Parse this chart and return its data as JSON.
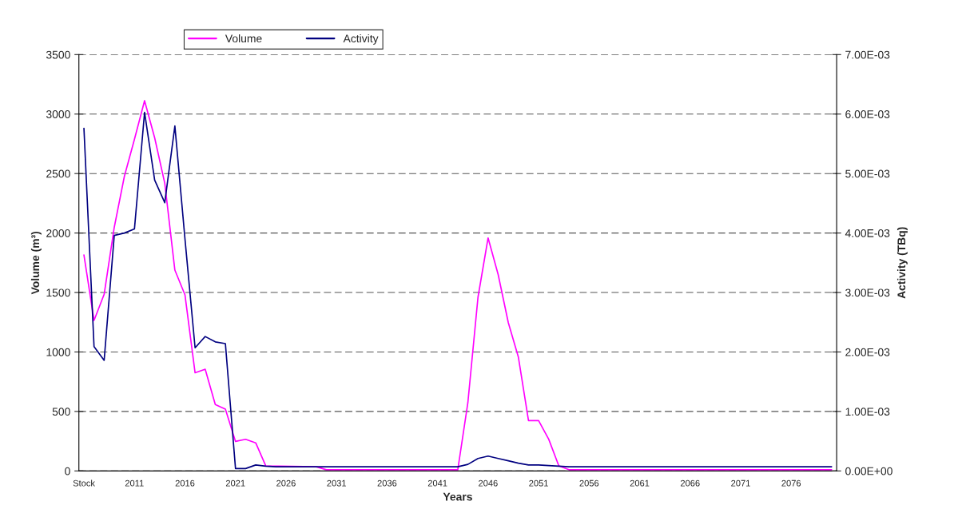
{
  "chart_data": {
    "type": "line",
    "xlabel": "Years",
    "ylabel": "Volume (m³)",
    "y2label": "Activity (TBq)",
    "categories": [
      "Stock",
      null,
      null,
      null,
      null,
      "2011",
      null,
      null,
      null,
      null,
      "2016",
      null,
      null,
      null,
      null,
      "2021",
      null,
      null,
      null,
      null,
      "2026",
      null,
      null,
      null,
      null,
      "2031",
      null,
      null,
      null,
      null,
      "2036",
      null,
      null,
      null,
      null,
      "2041",
      null,
      null,
      null,
      null,
      "2046",
      null,
      null,
      null,
      null,
      "2051",
      null,
      null,
      null,
      null,
      "2056",
      null,
      null,
      null,
      null,
      "2061",
      null,
      null,
      null,
      null,
      "2066",
      null,
      null,
      null,
      null,
      "2071",
      null,
      null,
      null,
      null,
      "2076",
      null,
      null,
      null,
      null
    ],
    "series": [
      {
        "name": "Volume",
        "color": "#ff00ff",
        "values": [
          1816,
          1265,
          1485,
          2048,
          2476,
          2788,
          3113,
          2800,
          2418,
          1688,
          1480,
          825,
          855,
          558,
          519,
          248,
          266,
          236,
          42,
          null,
          null,
          null,
          null,
          35,
          10,
          10,
          10,
          10,
          10,
          10,
          10,
          10,
          10,
          10,
          10,
          10,
          10,
          10,
          575,
          1460,
          1959,
          1650,
          1247,
          956,
          423,
          423,
          267,
          42,
          10,
          10,
          10,
          10,
          10,
          10,
          10,
          10,
          10,
          10,
          10,
          10,
          10,
          10,
          10,
          10,
          10,
          10,
          10,
          10,
          10,
          10,
          10,
          10,
          10,
          10,
          10
        ]
      },
      {
        "name": "Activity",
        "color": "#000080",
        "axis": "y2",
        "values": [
          0.00576,
          0.00209,
          0.00186,
          0.00396,
          0.004,
          0.00407,
          0.00603,
          0.00489,
          0.00451,
          0.0058,
          0.0039,
          0.00207,
          0.00226,
          0.00217,
          0.00214,
          4e-05,
          4e-05,
          0.0001,
          8e-05,
          7e-05,
          7e-05,
          7e-05,
          7e-05,
          7e-05,
          7e-05,
          7e-05,
          7e-05,
          7e-05,
          7e-05,
          7e-05,
          7e-05,
          7e-05,
          7e-05,
          7e-05,
          7e-05,
          7e-05,
          7e-05,
          7e-05,
          0.00011,
          0.00021,
          0.00025,
          0.00021,
          0.00017,
          0.00013,
          0.0001,
          0.0001,
          9e-05,
          8e-05,
          7e-05,
          7e-05,
          7e-05,
          7e-05,
          7e-05,
          7e-05,
          7e-05,
          7e-05,
          7e-05,
          7e-05,
          7e-05,
          7e-05,
          7e-05,
          7e-05,
          7e-05,
          7e-05,
          7e-05,
          7e-05,
          7e-05,
          7e-05,
          7e-05,
          7e-05,
          7e-05,
          7e-05,
          7e-05,
          7e-05,
          7e-05
        ]
      }
    ],
    "ylim": [
      0,
      3500
    ],
    "yticks": [
      0,
      500,
      1000,
      1500,
      2000,
      2500,
      3000,
      3500
    ],
    "y2lim": [
      0,
      0.007
    ],
    "y2ticks": [
      {
        "value": 0,
        "label": "0.00E+00"
      },
      {
        "value": 0.001,
        "label": "1.00E-03"
      },
      {
        "value": 0.002,
        "label": "2.00E-03"
      },
      {
        "value": 0.003,
        "label": "3.00E-03"
      },
      {
        "value": 0.004,
        "label": "4.00E-03"
      },
      {
        "value": 0.005,
        "label": "5.00E-03"
      },
      {
        "value": 0.006,
        "label": "6.00E-03"
      },
      {
        "value": 0.007,
        "label": "7.00E-03"
      }
    ],
    "grid": "y",
    "legend": "top",
    "marker": "none",
    "line_style": "solid"
  }
}
